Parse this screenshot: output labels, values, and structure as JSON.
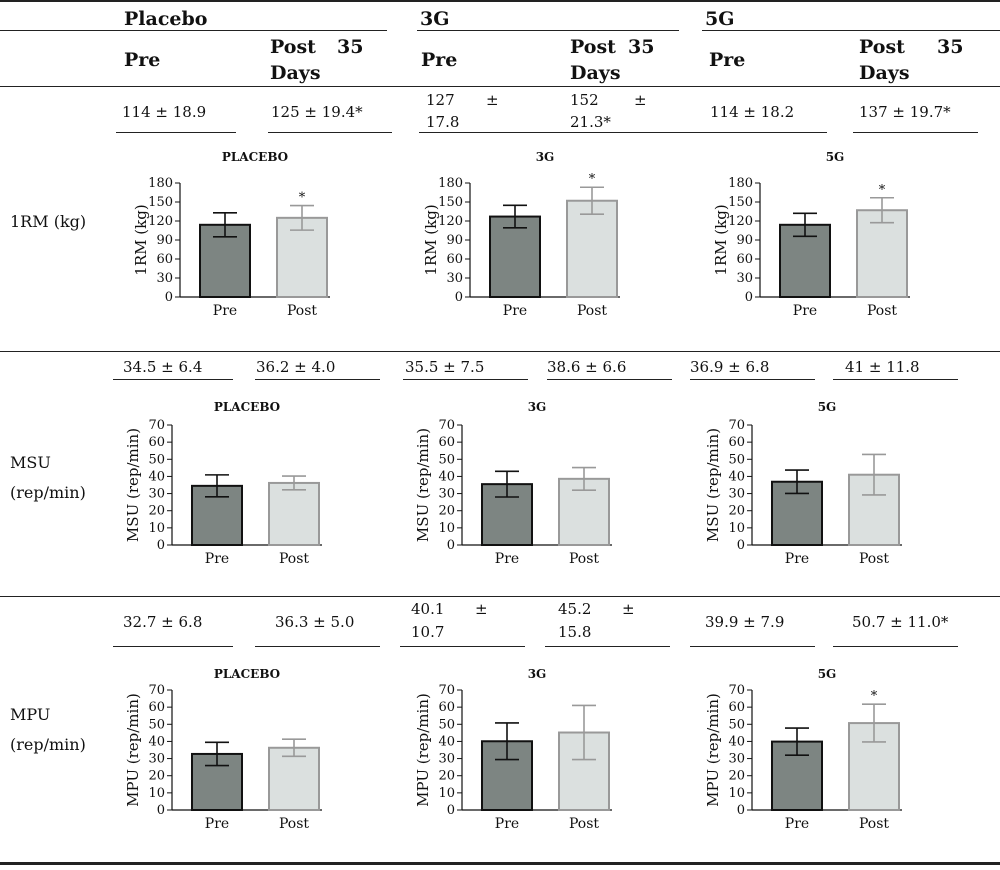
{
  "header": {
    "groups": [
      "Placebo",
      "3G",
      "5G"
    ],
    "pre": "Pre",
    "post_line1": "Post",
    "post_days": "35",
    "post_line2": "Days"
  },
  "row_labels": {
    "rm": "1RM (kg)",
    "msu_1": "MSU",
    "msu_2": "(rep/min)",
    "mpu_1": "MPU",
    "mpu_2": "(rep/min)"
  },
  "cells": {
    "rm": [
      "114 ± 18.9",
      "125 ± 19.4*",
      "127",
      "±",
      "17.8",
      "152",
      "±",
      "21.3*",
      "114 ± 18.2",
      "137 ± 19.7*"
    ],
    "msu": [
      "34.5 ± 6.4",
      "36.2 ± 4.0",
      "35.5 ± 7.5",
      "38.6 ± 6.6",
      "36.9 ± 6.8",
      "41 ± 11.8"
    ],
    "mpu": [
      "32.7 ± 6.8",
      "36.3 ± 5.0",
      "40.1",
      "±",
      "10.7",
      "45.2",
      "±",
      "15.8",
      "39.9 ± 7.9",
      "50.7 ± 11.0*"
    ]
  },
  "colors": {
    "pre_bar": "#7d8582",
    "post_bar": "#dbe0df",
    "pre_stroke": "#111111",
    "post_stroke": "#999999"
  },
  "chart_data": [
    {
      "type": "bar",
      "title": "PLACEBO",
      "ylabel": "1RM (kg)",
      "categories": [
        "Pre",
        "Post"
      ],
      "values": [
        114,
        125
      ],
      "errors": [
        18.9,
        19.4
      ],
      "significant": [
        false,
        true
      ],
      "ylim": [
        0,
        180
      ],
      "yticks": [
        0,
        30,
        60,
        90,
        120,
        150,
        180
      ]
    },
    {
      "type": "bar",
      "title": "3G",
      "ylabel": "1RM (kg)",
      "categories": [
        "Pre",
        "Post"
      ],
      "values": [
        127,
        152
      ],
      "errors": [
        17.8,
        21.3
      ],
      "significant": [
        false,
        true
      ],
      "ylim": [
        0,
        180
      ],
      "yticks": [
        0,
        30,
        60,
        90,
        120,
        150,
        180
      ]
    },
    {
      "type": "bar",
      "title": "5G",
      "ylabel": "1RM (kg)",
      "categories": [
        "Pre",
        "Post"
      ],
      "values": [
        114,
        137
      ],
      "errors": [
        18.2,
        19.7
      ],
      "significant": [
        false,
        true
      ],
      "ylim": [
        0,
        180
      ],
      "yticks": [
        0,
        30,
        60,
        90,
        120,
        150,
        180
      ]
    },
    {
      "type": "bar",
      "title": "PLACEBO",
      "ylabel": "MSU (rep/min)",
      "categories": [
        "Pre",
        "Post"
      ],
      "values": [
        34.5,
        36.2
      ],
      "errors": [
        6.4,
        4.0
      ],
      "significant": [
        false,
        false
      ],
      "ylim": [
        0,
        70
      ],
      "yticks": [
        0,
        10,
        20,
        30,
        40,
        50,
        60,
        70
      ]
    },
    {
      "type": "bar",
      "title": "3G",
      "ylabel": "MSU (rep/min)",
      "categories": [
        "Pre",
        "Post"
      ],
      "values": [
        35.5,
        38.6
      ],
      "errors": [
        7.5,
        6.6
      ],
      "significant": [
        false,
        false
      ],
      "ylim": [
        0,
        70
      ],
      "yticks": [
        0,
        10,
        20,
        30,
        40,
        50,
        60,
        70
      ]
    },
    {
      "type": "bar",
      "title": "5G",
      "ylabel": "MSU (rep/min)",
      "categories": [
        "Pre",
        "Post"
      ],
      "values": [
        36.9,
        41
      ],
      "errors": [
        6.8,
        11.8
      ],
      "significant": [
        false,
        false
      ],
      "ylim": [
        0,
        70
      ],
      "yticks": [
        0,
        10,
        20,
        30,
        40,
        50,
        60,
        70
      ]
    },
    {
      "type": "bar",
      "title": "PLACEBO",
      "ylabel": "MPU (rep/min)",
      "categories": [
        "Pre",
        "Post"
      ],
      "values": [
        32.7,
        36.3
      ],
      "errors": [
        6.8,
        5.0
      ],
      "significant": [
        false,
        false
      ],
      "ylim": [
        0,
        70
      ],
      "yticks": [
        0,
        10,
        20,
        30,
        40,
        50,
        60,
        70
      ]
    },
    {
      "type": "bar",
      "title": "3G",
      "ylabel": "MPU (rep/min)",
      "categories": [
        "Pre",
        "Post"
      ],
      "values": [
        40.1,
        45.2
      ],
      "errors": [
        10.7,
        15.8
      ],
      "significant": [
        false,
        false
      ],
      "ylim": [
        0,
        70
      ],
      "yticks": [
        0,
        10,
        20,
        30,
        40,
        50,
        60,
        70
      ]
    },
    {
      "type": "bar",
      "title": "5G",
      "ylabel": "MPU (rep/min)",
      "categories": [
        "Pre",
        "Post"
      ],
      "values": [
        39.9,
        50.7
      ],
      "errors": [
        7.9,
        11.0
      ],
      "significant": [
        false,
        true
      ],
      "ylim": [
        0,
        70
      ],
      "yticks": [
        0,
        10,
        20,
        30,
        40,
        50,
        60,
        70
      ]
    }
  ]
}
